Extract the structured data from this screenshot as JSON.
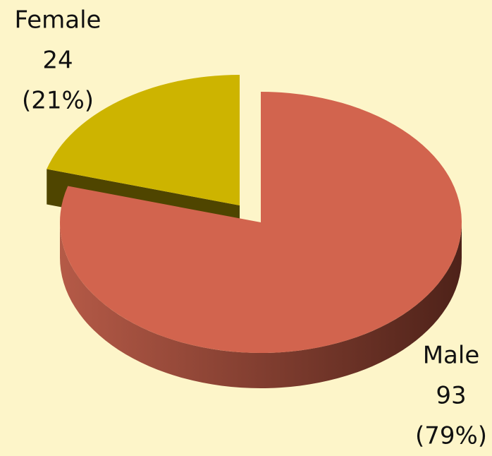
{
  "chart_data": {
    "type": "pie",
    "categories": [
      "Male",
      "Female"
    ],
    "values": [
      93,
      24
    ],
    "percent_labels": [
      "(79%)",
      "(21%)"
    ],
    "colors": [
      "#d2644e",
      "#cdb400"
    ],
    "side_colors": [
      [
        "#b55a47",
        "#4e2219"
      ],
      [
        "#6e6200",
        "#4f4500"
      ]
    ]
  }
}
